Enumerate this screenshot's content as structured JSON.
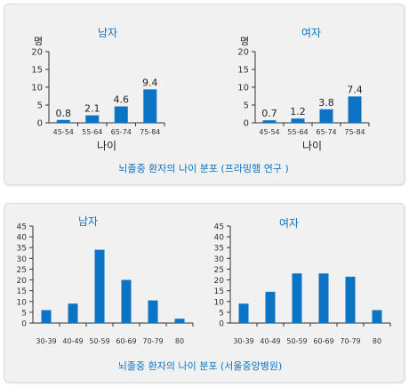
{
  "accent_color": "#0b74c4",
  "chart_data": [
    {
      "type": "bar",
      "caption": "뇌졸중 환자의 나이 분포 (프라밍햄 연구 )",
      "ylabel": "명",
      "xlabel": "나이",
      "ylim": [
        0,
        20
      ],
      "yticks": [
        0,
        5,
        10,
        15,
        20
      ],
      "grid": false,
      "panels": [
        {
          "title": "남자",
          "categories": [
            "45-54",
            "55-64",
            "65-74",
            "75-84"
          ],
          "values": [
            0.8,
            2.1,
            4.6,
            9.4
          ],
          "labels": [
            "0.8",
            "2.1",
            "4.6",
            "9.4"
          ]
        },
        {
          "title": "여자",
          "categories": [
            "45-54",
            "55-64",
            "65-74",
            "75-84"
          ],
          "values": [
            0.7,
            1.2,
            3.8,
            7.4
          ],
          "labels": [
            "0.7",
            "1.2",
            "3.8",
            "7.4"
          ]
        }
      ]
    },
    {
      "type": "bar",
      "caption": "뇌졸중 환자의 나이 분포 (서울중앙병원)",
      "ylabel": "",
      "xlabel": "",
      "ylim": [
        0,
        45
      ],
      "yticks": [
        0,
        5,
        10,
        15,
        20,
        25,
        30,
        35,
        40,
        45
      ],
      "grid": false,
      "panels": [
        {
          "title": "남자",
          "categories": [
            "30-39",
            "40-49",
            "50-59",
            "60-69",
            "70-79",
            "80"
          ],
          "values": [
            6,
            9,
            34,
            20,
            10.5,
            2
          ]
        },
        {
          "title": "여자",
          "categories": [
            "30-39",
            "40-49",
            "50-59",
            "60-69",
            "70-79",
            "80"
          ],
          "values": [
            9,
            14.5,
            23,
            23,
            21.5,
            6
          ]
        }
      ]
    }
  ]
}
